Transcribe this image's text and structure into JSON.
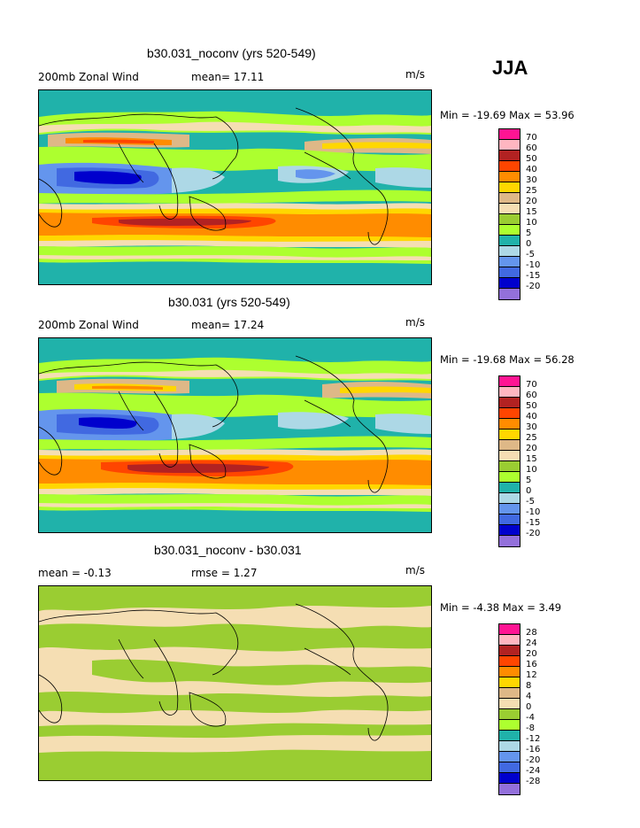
{
  "season": "JJA",
  "panels": [
    {
      "title": "b30.031_noconv (yrs 520-549)",
      "left_label": "200mb Zonal Wind",
      "mean_text": "mean=  17.11",
      "units": "m/s",
      "minmax": "Min = -19.69 Max =  53.96",
      "levels": [
        "70",
        "60",
        "50",
        "40",
        "30",
        "25",
        "20",
        "15",
        "10",
        "5",
        "0",
        "-5",
        "-10",
        "-15",
        "-20"
      ],
      "colors": [
        "#ff1493",
        "#ffb6c1",
        "#b22222",
        "#ff4500",
        "#ff8c00",
        "#ffd700",
        "#deb887",
        "#f5deb3",
        "#9acd32",
        "#adff2f",
        "#20b2aa",
        "#add8e6",
        "#6495ed",
        "#4169e1",
        "#0000cd",
        "#9370db"
      ]
    },
    {
      "title": "b30.031 (yrs 520-549)",
      "left_label": "200mb Zonal Wind",
      "mean_text": "mean=  17.24",
      "units": "m/s",
      "minmax": "Min = -19.68 Max =  56.28",
      "levels": [
        "70",
        "60",
        "50",
        "40",
        "30",
        "25",
        "20",
        "15",
        "10",
        "5",
        "0",
        "-5",
        "-10",
        "-15",
        "-20"
      ],
      "colors": [
        "#ff1493",
        "#ffb6c1",
        "#b22222",
        "#ff4500",
        "#ff8c00",
        "#ffd700",
        "#deb887",
        "#f5deb3",
        "#9acd32",
        "#adff2f",
        "#20b2aa",
        "#add8e6",
        "#6495ed",
        "#4169e1",
        "#0000cd",
        "#9370db"
      ]
    },
    {
      "title": "b30.031_noconv - b30.031",
      "left_label": "mean =  -0.13",
      "mean_text": "rmse =   1.27",
      "units": "m/s",
      "minmax": "Min =  -4.38 Max =   3.49",
      "levels": [
        "28",
        "24",
        "20",
        "16",
        "12",
        "8",
        "4",
        "0",
        "-4",
        "-8",
        "-12",
        "-16",
        "-20",
        "-24",
        "-28"
      ],
      "colors": [
        "#ff1493",
        "#ffb6c1",
        "#b22222",
        "#ff4500",
        "#ff8c00",
        "#ffd700",
        "#deb887",
        "#f5deb3",
        "#9acd32",
        "#adff2f",
        "#20b2aa",
        "#add8e6",
        "#6495ed",
        "#4169e1",
        "#0000cd",
        "#9370db"
      ]
    }
  ],
  "chart_data": [
    {
      "type": "heatmap",
      "title": "b30.031_noconv (yrs 520-549)",
      "variable": "200mb Zonal Wind",
      "units": "m/s",
      "mean": 17.11,
      "min": -19.69,
      "max": 53.96,
      "contour_levels": [
        -20,
        -15,
        -10,
        -5,
        0,
        5,
        10,
        15,
        20,
        25,
        30,
        40,
        50,
        60,
        70
      ]
    },
    {
      "type": "heatmap",
      "title": "b30.031 (yrs 520-549)",
      "variable": "200mb Zonal Wind",
      "units": "m/s",
      "mean": 17.24,
      "min": -19.68,
      "max": 56.28,
      "contour_levels": [
        -20,
        -15,
        -10,
        -5,
        0,
        5,
        10,
        15,
        20,
        25,
        30,
        40,
        50,
        60,
        70
      ]
    },
    {
      "type": "heatmap",
      "title": "b30.031_noconv - b30.031",
      "units": "m/s",
      "mean": -0.13,
      "rmse": 1.27,
      "min": -4.38,
      "max": 3.49,
      "contour_levels": [
        -28,
        -24,
        -20,
        -16,
        -12,
        -8,
        -4,
        0,
        4,
        8,
        12,
        16,
        20,
        24,
        28
      ]
    }
  ]
}
